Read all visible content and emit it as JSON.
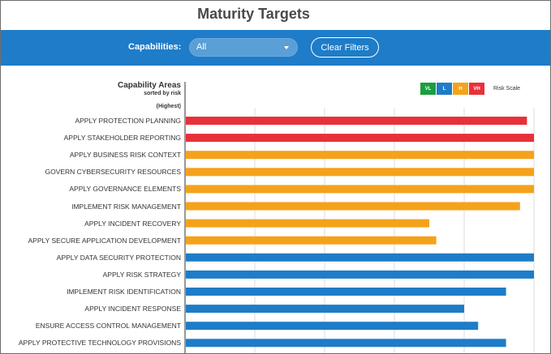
{
  "header": {
    "title": "Maturity Targets"
  },
  "filters": {
    "capabilities_label": "Capabilities:",
    "capabilities_value": "All",
    "clear_label": "Clear Filters"
  },
  "chart_data": {
    "type": "bar",
    "orientation": "horizontal",
    "title": "Capability Areas",
    "subtitle": "sorted by risk",
    "order_note": "(Highest)",
    "legend": {
      "title": "Risk Scale",
      "placement": "top-right",
      "items": [
        {
          "label": "VL",
          "color": "#1a9e3f"
        },
        {
          "label": "L",
          "color": "#1e7cc8"
        },
        {
          "label": "H",
          "color": "#f5a21b"
        },
        {
          "label": "VH",
          "color": "#e8303a"
        }
      ]
    },
    "grid": true,
    "xlim": [
      0,
      5
    ],
    "categories": [
      "APPLY PROTECTION PLANNING",
      "APPLY STAKEHOLDER REPORTING",
      "APPLY BUSINESS RISK CONTEXT",
      "GOVERN CYBERSECURITY RESOURCES",
      "APPLY GOVERNANCE ELEMENTS",
      "IMPLEMENT RISK MANAGEMENT",
      "APPLY INCIDENT RECOVERY",
      "APPLY SECURE APPLICATION DEVELOPMENT",
      "APPLY DATA SECURITY PROTECTION",
      "APPLY RISK STRATEGY",
      "IMPLEMENT RISK IDENTIFICATION",
      "APPLY INCIDENT RESPONSE",
      "ENSURE ACCESS CONTROL MANAGEMENT",
      "APPLY PROTECTIVE TECHNOLOGY PROVISIONS"
    ],
    "values": [
      4.9,
      5.0,
      5.0,
      5.0,
      5.0,
      4.8,
      3.5,
      3.6,
      5.0,
      5.0,
      4.6,
      4.0,
      4.2,
      4.6
    ],
    "risk": [
      "VH",
      "VH",
      "H",
      "H",
      "H",
      "H",
      "H",
      "H",
      "L",
      "L",
      "L",
      "L",
      "L",
      "L"
    ]
  }
}
